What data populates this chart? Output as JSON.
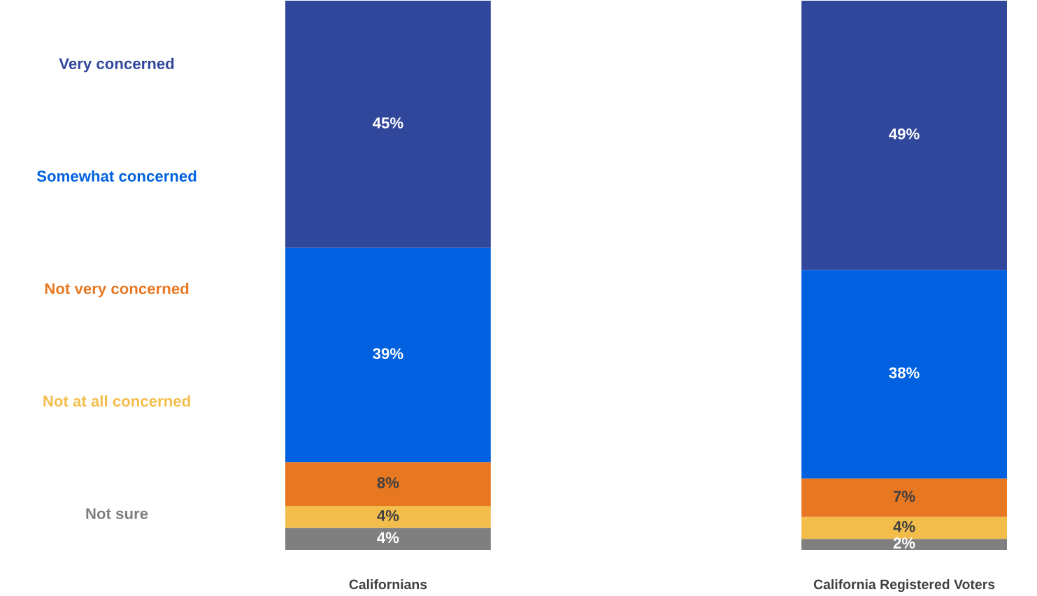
{
  "chart_data": {
    "type": "bar",
    "stacked": true,
    "categories": [
      "Californians",
      "California Registered Voters"
    ],
    "series": [
      {
        "name": "Not sure",
        "color": "#7f7f7f",
        "values": [
          4,
          2
        ],
        "value_labels": [
          "4%",
          "2%"
        ]
      },
      {
        "name": "Not at all concerned",
        "color": "#f2bd4b",
        "values": [
          4,
          4
        ],
        "value_labels": [
          "4%",
          "4%"
        ]
      },
      {
        "name": "Not very concerned",
        "color": "#e87722",
        "values": [
          8,
          7
        ],
        "value_labels": [
          "8%",
          "7%"
        ]
      },
      {
        "name": "Somewhat concerned",
        "color": "#0061e0",
        "values": [
          39,
          38
        ],
        "value_labels": [
          "39%",
          "38%"
        ]
      },
      {
        "name": "Very concerned",
        "color": "#31479b",
        "values": [
          45,
          49
        ],
        "value_labels": [
          "45%",
          "49%"
        ]
      }
    ],
    "legend": "left"
  }
}
